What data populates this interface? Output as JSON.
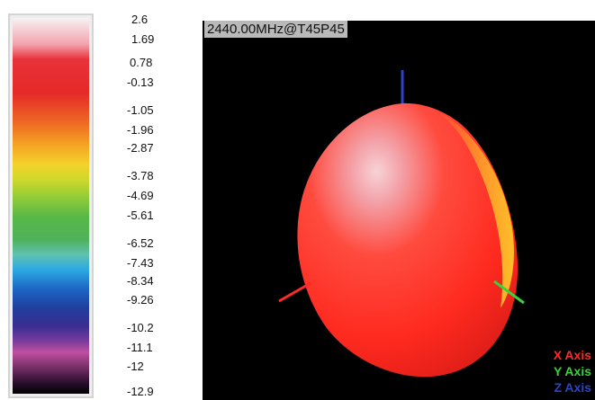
{
  "colorbar": {
    "labels": [
      "2.6",
      "1.69",
      "0.78",
      "-0.13",
      "-1.05",
      "-1.96",
      "-2.87",
      "-3.78",
      "-4.69",
      "-5.61",
      "-6.52",
      "-7.43",
      "-8.34",
      "-9.26",
      "-10.2",
      "-11.1",
      "-12",
      "-12.9"
    ]
  },
  "view": {
    "title": "2440.00MHz@T45P45",
    "axes": [
      {
        "label": "X Axis",
        "color": "#ff2a2a"
      },
      {
        "label": "Y Axis",
        "color": "#39d23a"
      },
      {
        "label": "Z Axis",
        "color": "#2b45c9"
      }
    ]
  }
}
